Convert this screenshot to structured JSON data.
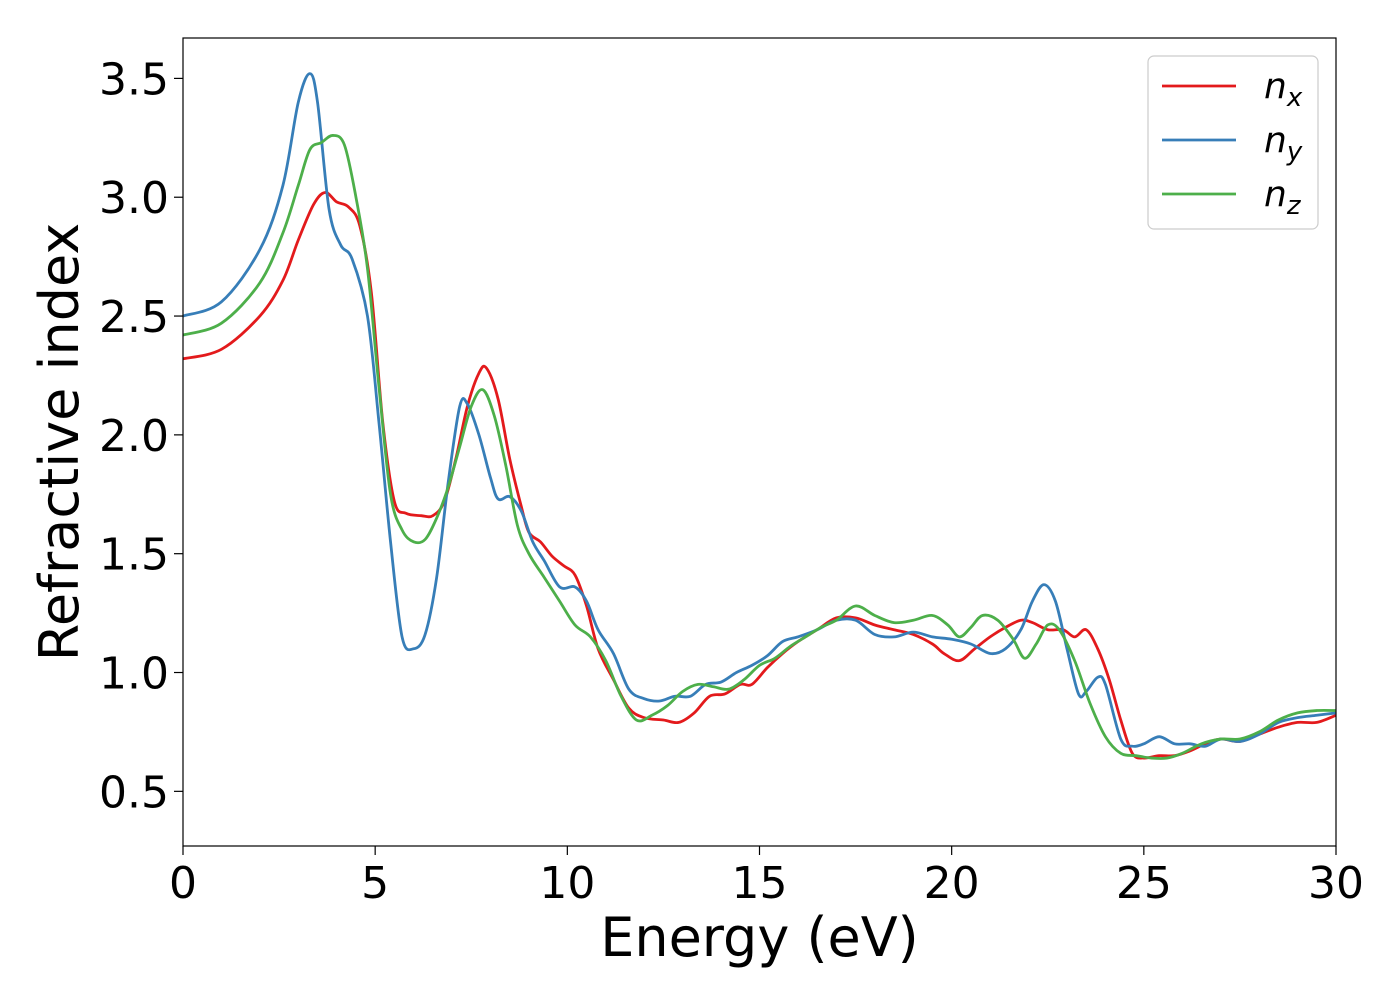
{
  "chart_data": {
    "type": "line",
    "title": "",
    "xlabel": "Energy (eV)",
    "ylabel": "Refractive index",
    "xlim": [
      0,
      30
    ],
    "ylim": [
      0.27,
      3.67
    ],
    "xticks": [
      0,
      5,
      10,
      15,
      20,
      25,
      30
    ],
    "xtick_labels": [
      "0",
      "5",
      "10",
      "15",
      "20",
      "25",
      "30"
    ],
    "yticks": [
      0.5,
      1.0,
      1.5,
      2.0,
      2.5,
      3.0,
      3.5
    ],
    "ytick_labels": [
      "0.5",
      "1.0",
      "1.5",
      "2.0",
      "2.5",
      "3.0",
      "3.5"
    ],
    "grid": false,
    "legend_position": "top-right",
    "series": [
      {
        "name": "n",
        "subscript": "x",
        "color": "#e31a1c",
        "points": [
          [
            0,
            2.32
          ],
          [
            1,
            2.36
          ],
          [
            2,
            2.5
          ],
          [
            2.6,
            2.65
          ],
          [
            3,
            2.82
          ],
          [
            3.4,
            2.97
          ],
          [
            3.7,
            3.02
          ],
          [
            4,
            2.98
          ],
          [
            4.3,
            2.96
          ],
          [
            4.6,
            2.88
          ],
          [
            4.9,
            2.6
          ],
          [
            5.2,
            2.05
          ],
          [
            5.5,
            1.72
          ],
          [
            5.8,
            1.67
          ],
          [
            6.2,
            1.66
          ],
          [
            6.5,
            1.66
          ],
          [
            6.8,
            1.72
          ],
          [
            7.1,
            1.9
          ],
          [
            7.4,
            2.12
          ],
          [
            7.7,
            2.26
          ],
          [
            7.9,
            2.28
          ],
          [
            8.2,
            2.15
          ],
          [
            8.5,
            1.9
          ],
          [
            8.8,
            1.7
          ],
          [
            9,
            1.59
          ],
          [
            9.3,
            1.55
          ],
          [
            9.6,
            1.49
          ],
          [
            9.9,
            1.45
          ],
          [
            10.2,
            1.41
          ],
          [
            10.5,
            1.28
          ],
          [
            10.8,
            1.1
          ],
          [
            11.2,
            0.97
          ],
          [
            11.6,
            0.85
          ],
          [
            12,
            0.81
          ],
          [
            12.5,
            0.8
          ],
          [
            12.9,
            0.79
          ],
          [
            13.3,
            0.83
          ],
          [
            13.7,
            0.9
          ],
          [
            14.1,
            0.91
          ],
          [
            14.5,
            0.95
          ],
          [
            14.8,
            0.95
          ],
          [
            15.2,
            1.02
          ],
          [
            15.6,
            1.08
          ],
          [
            16,
            1.13
          ],
          [
            16.5,
            1.18
          ],
          [
            17,
            1.23
          ],
          [
            17.5,
            1.23
          ],
          [
            18,
            1.2
          ],
          [
            18.5,
            1.18
          ],
          [
            19,
            1.16
          ],
          [
            19.5,
            1.12
          ],
          [
            19.8,
            1.08
          ],
          [
            20.2,
            1.05
          ],
          [
            20.6,
            1.1
          ],
          [
            21,
            1.15
          ],
          [
            21.4,
            1.19
          ],
          [
            21.8,
            1.22
          ],
          [
            22.1,
            1.21
          ],
          [
            22.5,
            1.18
          ],
          [
            22.9,
            1.18
          ],
          [
            23.2,
            1.15
          ],
          [
            23.5,
            1.18
          ],
          [
            23.8,
            1.1
          ],
          [
            24.1,
            0.97
          ],
          [
            24.4,
            0.8
          ],
          [
            24.7,
            0.66
          ],
          [
            25,
            0.64
          ],
          [
            25.4,
            0.65
          ],
          [
            25.8,
            0.65
          ],
          [
            26.2,
            0.67
          ],
          [
            26.6,
            0.7
          ],
          [
            27,
            0.72
          ],
          [
            27.5,
            0.71
          ],
          [
            28,
            0.74
          ],
          [
            28.5,
            0.77
          ],
          [
            29,
            0.79
          ],
          [
            29.5,
            0.79
          ],
          [
            30,
            0.82
          ]
        ]
      },
      {
        "name": "n",
        "subscript": "y",
        "color": "#377eb8",
        "points": [
          [
            0,
            2.5
          ],
          [
            1,
            2.56
          ],
          [
            2,
            2.78
          ],
          [
            2.6,
            3.05
          ],
          [
            3,
            3.4
          ],
          [
            3.3,
            3.52
          ],
          [
            3.5,
            3.4
          ],
          [
            3.8,
            2.95
          ],
          [
            4.1,
            2.8
          ],
          [
            4.4,
            2.74
          ],
          [
            4.8,
            2.5
          ],
          [
            5.1,
            2.05
          ],
          [
            5.4,
            1.55
          ],
          [
            5.7,
            1.15
          ],
          [
            6,
            1.1
          ],
          [
            6.3,
            1.16
          ],
          [
            6.6,
            1.4
          ],
          [
            6.9,
            1.8
          ],
          [
            7.2,
            2.12
          ],
          [
            7.4,
            2.13
          ],
          [
            7.7,
            2.0
          ],
          [
            8,
            1.82
          ],
          [
            8.2,
            1.73
          ],
          [
            8.5,
            1.74
          ],
          [
            8.8,
            1.68
          ],
          [
            9.1,
            1.55
          ],
          [
            9.4,
            1.47
          ],
          [
            9.8,
            1.36
          ],
          [
            10.2,
            1.36
          ],
          [
            10.5,
            1.3
          ],
          [
            10.8,
            1.18
          ],
          [
            11.2,
            1.08
          ],
          [
            11.6,
            0.93
          ],
          [
            12,
            0.89
          ],
          [
            12.4,
            0.88
          ],
          [
            12.8,
            0.9
          ],
          [
            13.2,
            0.9
          ],
          [
            13.6,
            0.95
          ],
          [
            14,
            0.96
          ],
          [
            14.4,
            1.0
          ],
          [
            14.8,
            1.03
          ],
          [
            15.2,
            1.07
          ],
          [
            15.6,
            1.13
          ],
          [
            16,
            1.15
          ],
          [
            16.5,
            1.18
          ],
          [
            17,
            1.22
          ],
          [
            17.5,
            1.22
          ],
          [
            18,
            1.16
          ],
          [
            18.5,
            1.15
          ],
          [
            19,
            1.17
          ],
          [
            19.5,
            1.15
          ],
          [
            20,
            1.14
          ],
          [
            20.5,
            1.12
          ],
          [
            21,
            1.08
          ],
          [
            21.4,
            1.1
          ],
          [
            21.8,
            1.18
          ],
          [
            22.1,
            1.3
          ],
          [
            22.4,
            1.37
          ],
          [
            22.7,
            1.3
          ],
          [
            23,
            1.1
          ],
          [
            23.3,
            0.91
          ],
          [
            23.5,
            0.92
          ],
          [
            23.8,
            0.98
          ],
          [
            24,
            0.95
          ],
          [
            24.4,
            0.72
          ],
          [
            24.7,
            0.69
          ],
          [
            25,
            0.7
          ],
          [
            25.4,
            0.73
          ],
          [
            25.8,
            0.7
          ],
          [
            26.2,
            0.7
          ],
          [
            26.6,
            0.69
          ],
          [
            27,
            0.72
          ],
          [
            27.5,
            0.71
          ],
          [
            28,
            0.74
          ],
          [
            28.5,
            0.79
          ],
          [
            29,
            0.81
          ],
          [
            29.5,
            0.82
          ],
          [
            30,
            0.83
          ]
        ]
      },
      {
        "name": "n",
        "subscript": "z",
        "color": "#4daf4a",
        "points": [
          [
            0,
            2.42
          ],
          [
            1,
            2.47
          ],
          [
            2,
            2.64
          ],
          [
            2.6,
            2.85
          ],
          [
            3,
            3.05
          ],
          [
            3.3,
            3.2
          ],
          [
            3.6,
            3.23
          ],
          [
            3.9,
            3.26
          ],
          [
            4.2,
            3.22
          ],
          [
            4.5,
            3.0
          ],
          [
            4.8,
            2.7
          ],
          [
            5.1,
            2.2
          ],
          [
            5.4,
            1.75
          ],
          [
            5.7,
            1.6
          ],
          [
            6,
            1.55
          ],
          [
            6.3,
            1.56
          ],
          [
            6.6,
            1.65
          ],
          [
            6.9,
            1.78
          ],
          [
            7.2,
            1.95
          ],
          [
            7.5,
            2.12
          ],
          [
            7.8,
            2.19
          ],
          [
            8.1,
            2.08
          ],
          [
            8.4,
            1.87
          ],
          [
            8.7,
            1.62
          ],
          [
            9,
            1.5
          ],
          [
            9.4,
            1.4
          ],
          [
            9.8,
            1.3
          ],
          [
            10.2,
            1.2
          ],
          [
            10.6,
            1.15
          ],
          [
            11,
            1.05
          ],
          [
            11.4,
            0.9
          ],
          [
            11.8,
            0.8
          ],
          [
            12.2,
            0.82
          ],
          [
            12.6,
            0.86
          ],
          [
            13,
            0.92
          ],
          [
            13.4,
            0.95
          ],
          [
            13.8,
            0.94
          ],
          [
            14.2,
            0.93
          ],
          [
            14.6,
            0.97
          ],
          [
            15,
            1.03
          ],
          [
            15.4,
            1.06
          ],
          [
            15.8,
            1.11
          ],
          [
            16.2,
            1.15
          ],
          [
            16.6,
            1.19
          ],
          [
            17,
            1.22
          ],
          [
            17.5,
            1.28
          ],
          [
            18,
            1.24
          ],
          [
            18.5,
            1.21
          ],
          [
            19,
            1.22
          ],
          [
            19.5,
            1.24
          ],
          [
            19.9,
            1.2
          ],
          [
            20.2,
            1.15
          ],
          [
            20.5,
            1.19
          ],
          [
            20.8,
            1.24
          ],
          [
            21.2,
            1.22
          ],
          [
            21.6,
            1.14
          ],
          [
            21.9,
            1.06
          ],
          [
            22.2,
            1.12
          ],
          [
            22.5,
            1.2
          ],
          [
            22.8,
            1.18
          ],
          [
            23.2,
            1.05
          ],
          [
            23.6,
            0.87
          ],
          [
            24,
            0.73
          ],
          [
            24.4,
            0.66
          ],
          [
            24.8,
            0.65
          ],
          [
            25.2,
            0.64
          ],
          [
            25.6,
            0.64
          ],
          [
            26,
            0.66
          ],
          [
            26.5,
            0.7
          ],
          [
            27,
            0.72
          ],
          [
            27.5,
            0.72
          ],
          [
            28,
            0.75
          ],
          [
            28.5,
            0.8
          ],
          [
            29,
            0.83
          ],
          [
            29.5,
            0.84
          ],
          [
            30,
            0.84
          ]
        ]
      }
    ]
  }
}
